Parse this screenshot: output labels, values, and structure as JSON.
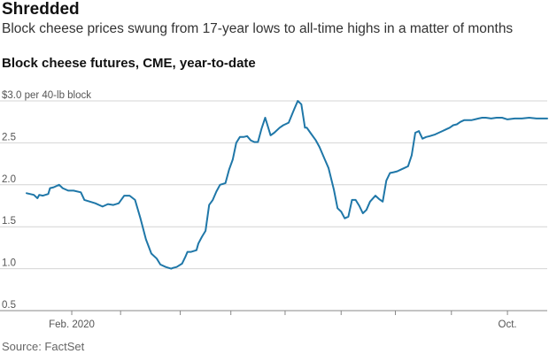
{
  "header": {
    "title": "Shredded",
    "subtitle": "Block cheese prices swung from 17-year lows to all-time highs in a matter of months"
  },
  "chart_heading": "Block cheese futures, CME, year-to-date",
  "source": "Source: FactSet",
  "chart_data": {
    "type": "line",
    "title": "Block cheese futures, CME, year-to-date",
    "ylabel": "",
    "xlabel": "",
    "y_top_label": "$3.0 per 40-lb block",
    "yticks": [
      0.5,
      1.0,
      1.5,
      2.0,
      2.5,
      3.0
    ],
    "ytick_labels": [
      "0.5",
      "1.0",
      "1.5",
      "2.0",
      "2.5",
      "$3.0 per 40-lb block"
    ],
    "ylim": [
      0.5,
      3.0
    ],
    "xlim": [
      0,
      288
    ],
    "grid": true,
    "xtick_positions": [
      25,
      52,
      85,
      113,
      143,
      174,
      204,
      235,
      266
    ],
    "xtick_labels": [
      "Feb. 2020",
      "",
      "",
      "",
      "",
      "",
      "",
      "",
      "Oct."
    ],
    "series": [
      {
        "color": "#1f77a8",
        "x": [
          0,
          4,
          6,
          7,
          9,
          12,
          13,
          15,
          18,
          20,
          23,
          26,
          30,
          32,
          35,
          38,
          42,
          45,
          48,
          51,
          54,
          57,
          60,
          63,
          66,
          69,
          72,
          74,
          77,
          80,
          81,
          83,
          86,
          88,
          89,
          91,
          94,
          95,
          97,
          99,
          101,
          103,
          105,
          107,
          110,
          112,
          114,
          116,
          118,
          120,
          122,
          124,
          126,
          128,
          130,
          132,
          135,
          137,
          140,
          142,
          145,
          148,
          150,
          152,
          154,
          155,
          157,
          160,
          162,
          165,
          167,
          170,
          172,
          174,
          176,
          178,
          180,
          182,
          184,
          186,
          188,
          190,
          193,
          195,
          197,
          199,
          201,
          203,
          205,
          207,
          209,
          211,
          213,
          215,
          217,
          219,
          221,
          223,
          226,
          228,
          230,
          232,
          234,
          236,
          238,
          240,
          242,
          244,
          246,
          248,
          250,
          252,
          254,
          257,
          260,
          263,
          266,
          270,
          274,
          278,
          282,
          285,
          288
        ],
        "y": [
          1.9,
          1.88,
          1.84,
          1.88,
          1.87,
          1.89,
          1.96,
          1.97,
          2.0,
          1.96,
          1.93,
          1.93,
          1.91,
          1.82,
          1.8,
          1.78,
          1.74,
          1.77,
          1.76,
          1.78,
          1.87,
          1.87,
          1.82,
          1.6,
          1.35,
          1.18,
          1.12,
          1.05,
          1.02,
          1.0,
          1.01,
          1.02,
          1.06,
          1.15,
          1.2,
          1.2,
          1.22,
          1.3,
          1.38,
          1.45,
          1.76,
          1.82,
          1.92,
          2.0,
          2.02,
          2.18,
          2.3,
          2.5,
          2.57,
          2.57,
          2.58,
          2.53,
          2.51,
          2.51,
          2.67,
          2.8,
          2.59,
          2.62,
          2.68,
          2.71,
          2.74,
          2.9,
          3.0,
          2.96,
          2.68,
          2.68,
          2.62,
          2.53,
          2.45,
          2.3,
          2.2,
          1.94,
          1.72,
          1.68,
          1.6,
          1.62,
          1.82,
          1.82,
          1.75,
          1.66,
          1.7,
          1.8,
          1.87,
          1.83,
          1.8,
          2.05,
          2.14,
          2.15,
          2.16,
          2.18,
          2.2,
          2.22,
          2.35,
          2.62,
          2.64,
          2.55,
          2.57,
          2.58,
          2.6,
          2.62,
          2.64,
          2.66,
          2.68,
          2.71,
          2.72,
          2.75,
          2.77,
          2.77,
          2.77,
          2.78,
          2.79,
          2.8,
          2.8,
          2.79,
          2.8,
          2.8,
          2.78,
          2.79,
          2.79,
          2.8,
          2.79,
          2.79,
          2.79
        ]
      }
    ]
  }
}
